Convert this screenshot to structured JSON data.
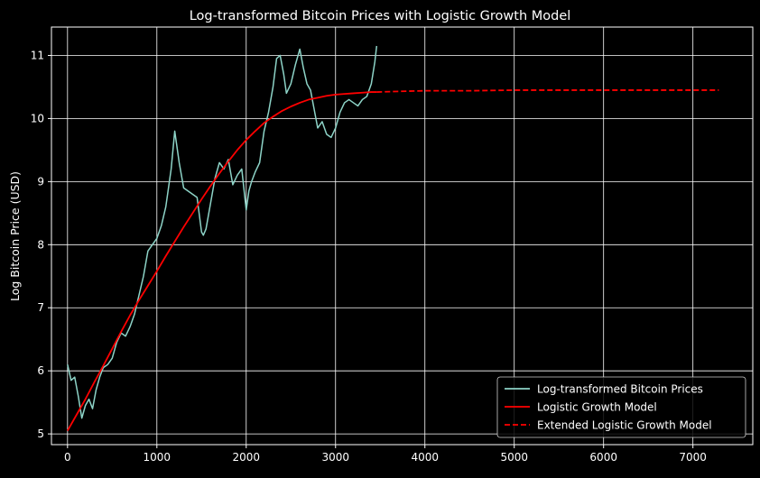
{
  "chart_data": {
    "type": "line",
    "title": "Log-transformed Bitcoin Prices with Logistic Growth Model",
    "xlabel": "",
    "ylabel": "Log Bitcoin Price (USD)",
    "xlim": [
      -180,
      7670
    ],
    "ylim": [
      4.83,
      11.45
    ],
    "x_ticks": [
      0,
      1000,
      2000,
      3000,
      4000,
      5000,
      6000,
      7000
    ],
    "y_ticks": [
      5,
      6,
      7,
      8,
      9,
      10,
      11
    ],
    "grid": true,
    "legend_position": "lower-right",
    "series": [
      {
        "name": "Log-transformed Bitcoin Prices",
        "color": "#8dd3c7",
        "style": "solid",
        "x": [
          0,
          40,
          80,
          120,
          160,
          200,
          240,
          280,
          320,
          360,
          400,
          450,
          500,
          550,
          600,
          650,
          700,
          750,
          800,
          850,
          900,
          950,
          1000,
          1050,
          1100,
          1130,
          1160,
          1180,
          1200,
          1220,
          1250,
          1300,
          1350,
          1400,
          1450,
          1500,
          1520,
          1550,
          1600,
          1650,
          1700,
          1750,
          1800,
          1850,
          1900,
          1950,
          2000,
          2030,
          2060,
          2100,
          2150,
          2200,
          2250,
          2300,
          2340,
          2380,
          2420,
          2450,
          2500,
          2550,
          2600,
          2640,
          2680,
          2720,
          2760,
          2800,
          2850,
          2900,
          2950,
          3000,
          3050,
          3100,
          3150,
          3200,
          3250,
          3300,
          3350,
          3400,
          3440,
          3460
        ],
        "y": [
          6.1,
          5.85,
          5.9,
          5.6,
          5.25,
          5.45,
          5.55,
          5.4,
          5.7,
          5.9,
          6.05,
          6.1,
          6.2,
          6.45,
          6.6,
          6.55,
          6.7,
          6.9,
          7.2,
          7.5,
          7.9,
          8.0,
          8.1,
          8.3,
          8.6,
          8.9,
          9.2,
          9.5,
          9.8,
          9.6,
          9.3,
          8.9,
          8.85,
          8.8,
          8.75,
          8.2,
          8.15,
          8.25,
          8.65,
          9.05,
          9.3,
          9.2,
          9.35,
          8.95,
          9.1,
          9.2,
          8.55,
          8.85,
          9.0,
          9.15,
          9.3,
          9.8,
          10.1,
          10.5,
          10.95,
          11.0,
          10.7,
          10.4,
          10.55,
          10.85,
          11.1,
          10.8,
          10.55,
          10.45,
          10.15,
          9.85,
          9.95,
          9.75,
          9.7,
          9.85,
          10.1,
          10.25,
          10.3,
          10.25,
          10.2,
          10.3,
          10.35,
          10.55,
          10.9,
          11.15
        ]
      },
      {
        "name": "Logistic Growth Model",
        "color": "#ff0000",
        "style": "solid",
        "x": [
          0,
          100,
          200,
          300,
          400,
          500,
          600,
          700,
          800,
          900,
          1000,
          1100,
          1200,
          1300,
          1400,
          1500,
          1600,
          1700,
          1800,
          1900,
          2000,
          2100,
          2200,
          2300,
          2400,
          2500,
          2600,
          2700,
          2800,
          2900,
          3000,
          3100,
          3200,
          3300,
          3400,
          3460
        ],
        "y": [
          5.05,
          5.3,
          5.55,
          5.82,
          6.08,
          6.35,
          6.62,
          6.88,
          7.12,
          7.35,
          7.58,
          7.82,
          8.05,
          8.28,
          8.5,
          8.72,
          8.93,
          9.13,
          9.32,
          9.5,
          9.66,
          9.8,
          9.93,
          10.03,
          10.12,
          10.19,
          10.25,
          10.3,
          10.33,
          10.36,
          10.38,
          10.39,
          10.4,
          10.41,
          10.42,
          10.42
        ]
      },
      {
        "name": "Extended Logistic Growth Model",
        "color": "#ff0000",
        "style": "dashed",
        "x": [
          3460,
          3700,
          4000,
          4500,
          5000,
          5500,
          6000,
          6500,
          7000,
          7290
        ],
        "y": [
          10.42,
          10.43,
          10.44,
          10.44,
          10.45,
          10.45,
          10.45,
          10.45,
          10.45,
          10.45
        ]
      }
    ]
  }
}
